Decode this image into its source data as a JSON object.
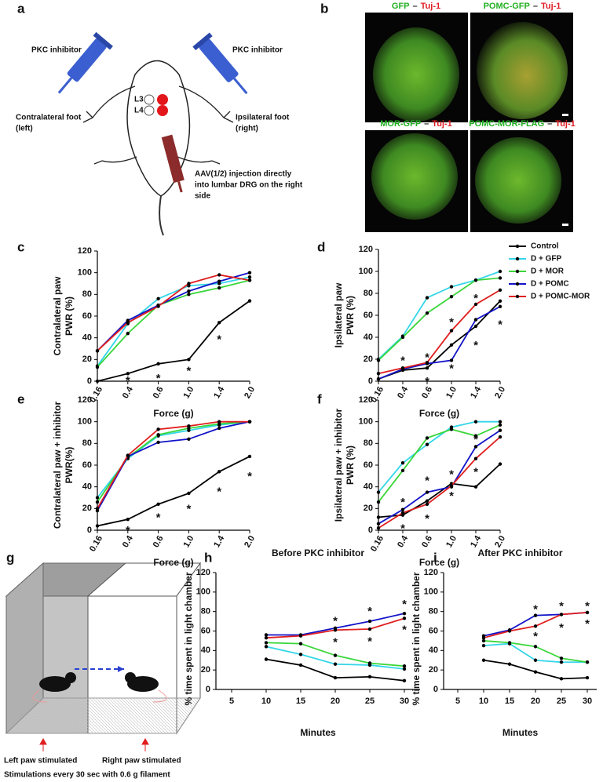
{
  "panel_labels": [
    "a",
    "b",
    "c",
    "d",
    "e",
    "f",
    "g",
    "h",
    "i"
  ],
  "panel_a": {
    "left_syringe": "PKC inhibitor",
    "right_syringe": "PKC inhibitor",
    "left_foot": [
      "Contralateral foot",
      "(left)"
    ],
    "right_foot": [
      "Ipsilateral foot",
      "(right)"
    ],
    "dorsal_roots": [
      "L3",
      "L4"
    ],
    "injection": [
      "AAV(1/2) injection directly",
      "into lumbar DRG on the right",
      "side"
    ]
  },
  "panel_b": {
    "images": [
      {
        "title": [
          {
            "text": "GFP",
            "color": "#22b022"
          },
          {
            "text": "–",
            "color": "#222222"
          },
          {
            "text": "Tuj-1",
            "color": "#e01e25"
          }
        ]
      },
      {
        "title": [
          {
            "text": "POMC-GFP",
            "color": "#22b022"
          },
          {
            "text": "–",
            "color": "#222222"
          },
          {
            "text": "Tuj-1",
            "color": "#e01e25"
          }
        ]
      },
      {
        "title": [
          {
            "text": "MOR-GFP",
            "color": "#22b022"
          },
          {
            "text": "–",
            "color": "#222222"
          },
          {
            "text": "Tuj-1",
            "color": "#e01e25"
          }
        ]
      },
      {
        "title": [
          {
            "text": "POMC-MOR-FLAG",
            "color": "#22b022"
          },
          {
            "text": "–",
            "color": "#222222"
          },
          {
            "text": "Tuj-1",
            "color": "#e01e25"
          }
        ]
      }
    ]
  },
  "panel_g": {
    "left_caption": "Left paw stimulated",
    "right_caption": "Right paw stimulated",
    "footer": "Stimulations every 30 sec with 0.6 g filament"
  },
  "chart_data": [
    {
      "type": "line",
      "ylabel": [
        "Contralateral paw",
        "PWR (%)"
      ],
      "xlabel": "Force (g)",
      "categories": [
        "0.16",
        "0.4",
        "0.6",
        "1.0",
        "1.4",
        "2.0"
      ],
      "ylim": [
        0,
        120
      ],
      "yticks": [
        0,
        20,
        40,
        60,
        80,
        100,
        120
      ],
      "legend": false,
      "series": [
        {
          "name": "Control",
          "color": "#000000",
          "values": [
            0,
            7,
            16,
            20,
            54,
            74
          ]
        },
        {
          "name": "D + GFP",
          "color": "#33d6e8",
          "values": [
            14,
            53,
            76,
            88,
            90,
            96
          ]
        },
        {
          "name": "D + MOR",
          "color": "#3ad63a",
          "values": [
            13,
            44,
            70,
            80,
            86,
            93
          ]
        },
        {
          "name": "D + POMC",
          "color": "#1212c8",
          "values": [
            28,
            56,
            70,
            83,
            92,
            100
          ]
        },
        {
          "name": "D + POMC-MOR",
          "color": "#e01e1e",
          "values": [
            28,
            54,
            69,
            90,
            98,
            93
          ]
        }
      ],
      "annotations": [
        {
          "text": "*",
          "x": "0.4",
          "y": 3,
          "color": "#000000"
        },
        {
          "text": "*",
          "x": "0.6",
          "y": 5,
          "color": "#000000"
        },
        {
          "text": "*",
          "x": "1.0",
          "y": 12,
          "color": "#000000"
        },
        {
          "text": "*",
          "x": "1.4",
          "y": 41,
          "color": "#000000"
        }
      ]
    },
    {
      "type": "line",
      "ylabel": [
        "Ipsilateral paw",
        "PWR (%)"
      ],
      "xlabel": "Force (g)",
      "categories": [
        "0.16",
        "0.4",
        "0.6",
        "1.0",
        "1.4",
        "2.0"
      ],
      "ylim": [
        0,
        120
      ],
      "yticks": [
        0,
        20,
        40,
        60,
        80,
        100,
        120
      ],
      "legend": true,
      "series": [
        {
          "name": "Control",
          "color": "#000000",
          "values": [
            2,
            10,
            12,
            33,
            50,
            73
          ]
        },
        {
          "name": "D + GFP",
          "color": "#33d6e8",
          "values": [
            20,
            41,
            76,
            86,
            92,
            100
          ]
        },
        {
          "name": "D + MOR",
          "color": "#3ad63a",
          "values": [
            19,
            40,
            62,
            77,
            92,
            94
          ]
        },
        {
          "name": "D + POMC",
          "color": "#1212c8",
          "values": [
            2,
            11,
            16,
            19,
            56,
            68
          ]
        },
        {
          "name": "D + POMC-MOR",
          "color": "#e01e1e",
          "values": [
            7,
            12,
            17,
            46,
            70,
            83
          ]
        }
      ],
      "annotations": [
        {
          "text": "*",
          "x": "0.4",
          "y": 21,
          "color": "#e01e1e"
        },
        {
          "text": "*",
          "x": "0.6",
          "y": 24,
          "color": "#e01e1e"
        },
        {
          "text": "*",
          "x": "1.0",
          "y": 56,
          "color": "#e01e1e"
        },
        {
          "text": "*",
          "x": "1.4",
          "y": 78,
          "color": "#e01e1e"
        },
        {
          "text": "*",
          "x": "0.6",
          "y": 2,
          "color": "#1212c8"
        },
        {
          "text": "*",
          "x": "1.0",
          "y": 14,
          "color": "#1212c8"
        },
        {
          "text": "*",
          "x": "1.4",
          "y": 35,
          "color": "#1212c8"
        },
        {
          "text": "*",
          "x": "2.0",
          "y": 54,
          "color": "#1212c8"
        }
      ]
    },
    {
      "type": "line",
      "ylabel": [
        "Contralateral paw + inhibitor",
        "PWR(%)"
      ],
      "xlabel": "Force (g)",
      "categories": [
        "0.16",
        "0.4",
        "0.6",
        "1.0",
        "1.4",
        "2.0"
      ],
      "ylim": [
        0,
        120
      ],
      "yticks": [
        0,
        20,
        40,
        60,
        80,
        100,
        120
      ],
      "legend": false,
      "series": [
        {
          "name": "Control",
          "color": "#000000",
          "values": [
            4,
            10,
            24,
            34,
            54,
            68
          ]
        },
        {
          "name": "D + GFP",
          "color": "#33d6e8",
          "values": [
            30,
            66,
            87,
            92,
            97,
            100
          ]
        },
        {
          "name": "D + MOR",
          "color": "#3ad63a",
          "values": [
            26,
            67,
            88,
            94,
            98,
            100
          ]
        },
        {
          "name": "D + POMC",
          "color": "#1212c8",
          "values": [
            18,
            68,
            81,
            84,
            94,
            100
          ]
        },
        {
          "name": "D + POMC-MOR",
          "color": "#e01e1e",
          "values": [
            20,
            69,
            93,
            96,
            100,
            100
          ]
        }
      ],
      "annotations": [
        {
          "text": "*",
          "x": "0.4",
          "y": 2,
          "color": "#000000"
        },
        {
          "text": "*",
          "x": "0.6",
          "y": 14,
          "color": "#000000"
        },
        {
          "text": "*",
          "x": "1.0",
          "y": 22,
          "color": "#000000"
        },
        {
          "text": "*",
          "x": "1.4",
          "y": 38,
          "color": "#000000"
        },
        {
          "text": "*",
          "x": "2.0",
          "y": 52,
          "color": "#000000"
        }
      ]
    },
    {
      "type": "line",
      "ylabel": [
        "Ipsilateral paw + inhibitor",
        "PWR (%)"
      ],
      "xlabel": "Force (g)",
      "categories": [
        "0.16",
        "0.4",
        "0.6",
        "1.0",
        "1.4",
        "2.0"
      ],
      "ylim": [
        0,
        120
      ],
      "yticks": [
        0,
        20,
        40,
        60,
        80,
        100,
        120
      ],
      "legend": false,
      "series": [
        {
          "name": "Control",
          "color": "#000000",
          "values": [
            12,
            14,
            27,
            43,
            40,
            61
          ]
        },
        {
          "name": "D + GFP",
          "color": "#33d6e8",
          "values": [
            35,
            62,
            79,
            95,
            100,
            100
          ]
        },
        {
          "name": "D + MOR",
          "color": "#3ad63a",
          "values": [
            26,
            55,
            85,
            93,
            87,
            97
          ]
        },
        {
          "name": "D + POMC",
          "color": "#1212c8",
          "values": [
            6,
            19,
            35,
            40,
            77,
            92
          ]
        },
        {
          "name": "D + POMC-MOR",
          "color": "#e01e1e",
          "values": [
            2,
            16,
            24,
            41,
            66,
            86
          ]
        }
      ],
      "annotations": [
        {
          "text": "*",
          "x": "0.4",
          "y": 28,
          "color": "#1212c8"
        },
        {
          "text": "*",
          "x": "0.6",
          "y": 48,
          "color": "#1212c8"
        },
        {
          "text": "*",
          "x": "1.0",
          "y": 54,
          "color": "#1212c8"
        },
        {
          "text": "*",
          "x": "1.4",
          "y": 86,
          "color": "#1212c8"
        },
        {
          "text": "*",
          "x": "0.4",
          "y": 4,
          "color": "#e01e1e"
        },
        {
          "text": "*",
          "x": "0.6",
          "y": 13,
          "color": "#e01e1e"
        },
        {
          "text": "*",
          "x": "1.0",
          "y": 34,
          "color": "#e01e1e"
        },
        {
          "text": "*",
          "x": "1.4",
          "y": 56,
          "color": "#e01e1e"
        }
      ]
    },
    {
      "type": "line",
      "title": "Before PKC inhibitor",
      "ylabel": "% time spent in light chamber",
      "xlabel": "Minutes",
      "categories": [
        "5",
        "10",
        "15",
        "20",
        "25",
        "30"
      ],
      "ylim": [
        0,
        120
      ],
      "yticks": [
        0,
        20,
        40,
        60,
        80,
        100,
        120
      ],
      "legend": false,
      "series": [
        {
          "name": "Control",
          "color": "#000000",
          "values": [
            null,
            31,
            25,
            12,
            13,
            9
          ]
        },
        {
          "name": "D + GFP",
          "color": "#33d6e8",
          "values": [
            null,
            44,
            36,
            26,
            25,
            21
          ]
        },
        {
          "name": "D + MOR",
          "color": "#3ad63a",
          "values": [
            null,
            48,
            47,
            35,
            27,
            24
          ]
        },
        {
          "name": "D + POMC",
          "color": "#1212c8",
          "values": [
            null,
            56,
            56,
            63,
            70,
            78
          ]
        },
        {
          "name": "D + POMC-MOR",
          "color": "#e01e1e",
          "values": [
            null,
            53,
            55,
            61,
            62,
            73
          ]
        }
      ],
      "annotations": [
        {
          "text": "*",
          "x": "20",
          "y": 73,
          "color": "#1212c8"
        },
        {
          "text": "*",
          "x": "25",
          "y": 83,
          "color": "#1212c8"
        },
        {
          "text": "*",
          "x": "30",
          "y": 90,
          "color": "#1212c8"
        },
        {
          "text": "*",
          "x": "20",
          "y": 51,
          "color": "#e01e1e"
        },
        {
          "text": "*",
          "x": "25",
          "y": 52,
          "color": "#e01e1e"
        },
        {
          "text": "*",
          "x": "30",
          "y": 64,
          "color": "#e01e1e"
        }
      ]
    },
    {
      "type": "line",
      "title": "After PKC inhibitor",
      "ylabel": "% time spent in light chamber",
      "xlabel": "Minutes",
      "categories": [
        "5",
        "10",
        "15",
        "20",
        "25",
        "30"
      ],
      "ylim": [
        0,
        120
      ],
      "yticks": [
        0,
        20,
        40,
        60,
        80,
        100,
        120
      ],
      "legend": false,
      "series": [
        {
          "name": "Control",
          "color": "#000000",
          "values": [
            null,
            30,
            26,
            18,
            11,
            12
          ]
        },
        {
          "name": "D + GFP",
          "color": "#33d6e8",
          "values": [
            null,
            45,
            47,
            30,
            28,
            28
          ]
        },
        {
          "name": "D + MOR",
          "color": "#3ad63a",
          "values": [
            null,
            50,
            48,
            44,
            32,
            28
          ]
        },
        {
          "name": "D + POMC",
          "color": "#1212c8",
          "values": [
            null,
            55,
            61,
            76,
            77,
            79
          ]
        },
        {
          "name": "D + POMC-MOR",
          "color": "#e01e1e",
          "values": [
            null,
            53,
            60,
            65,
            77,
            79
          ]
        }
      ],
      "annotations": [
        {
          "text": "*",
          "x": "20",
          "y": 85,
          "color": "#1212c8"
        },
        {
          "text": "*",
          "x": "25",
          "y": 88,
          "color": "#1212c8"
        },
        {
          "text": "*",
          "x": "30",
          "y": 88,
          "color": "#1212c8"
        },
        {
          "text": "*",
          "x": "20",
          "y": 57,
          "color": "#e01e1e"
        },
        {
          "text": "*",
          "x": "25",
          "y": 66,
          "color": "#e01e1e"
        },
        {
          "text": "*",
          "x": "30",
          "y": 70,
          "color": "#e01e1e"
        }
      ]
    }
  ]
}
